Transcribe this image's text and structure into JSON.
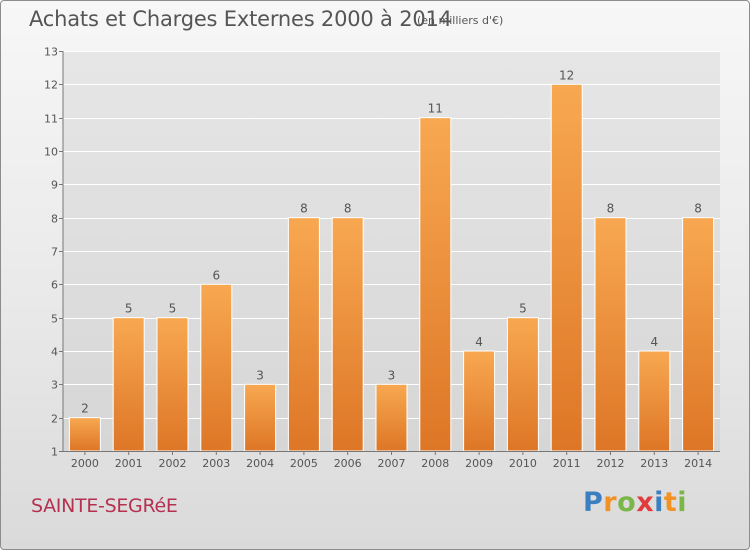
{
  "header": {
    "title": "Achats et Charges Externes 2000 à 2014",
    "subtitle": "(en milliers d'€)"
  },
  "footer": {
    "city": "SAINTE-SEGRéE",
    "logo": {
      "letters": [
        "P",
        "r",
        "o",
        "x",
        "i",
        "t",
        "i"
      ],
      "colors": [
        "#3c7fc0",
        "#f29222",
        "#7ab648",
        "#e23b3b",
        "#3c7fc0",
        "#f29222",
        "#7ab648"
      ]
    }
  },
  "chart_data": {
    "type": "bar",
    "title": "Achats et Charges Externes 2000 à 2014",
    "subtitle": "(en milliers d'€)",
    "categories": [
      "2000",
      "2001",
      "2002",
      "2003",
      "2004",
      "2005",
      "2006",
      "2007",
      "2008",
      "2009",
      "2010",
      "2011",
      "2012",
      "2013",
      "2014"
    ],
    "values": [
      2,
      5,
      5,
      6,
      3,
      8,
      8,
      3,
      11,
      4,
      5,
      12,
      8,
      4,
      8
    ],
    "data_labels": [
      "2",
      "5",
      "5",
      "6",
      "3",
      "8",
      "8",
      "3",
      "11",
      "4",
      "5",
      "12",
      "8",
      "4",
      "8"
    ],
    "yticks": [
      1,
      2,
      3,
      4,
      5,
      6,
      7,
      8,
      9,
      10,
      11,
      12,
      13
    ],
    "ylim": [
      1,
      13
    ],
    "xlabel": "",
    "ylabel": "",
    "grid": true,
    "legend": "none",
    "colors": {
      "bar_light": "#f8a851",
      "bar_dark": "#dd7626",
      "bar_edge": "#ffffff",
      "grid": "#ffffff",
      "text": "#555555"
    }
  }
}
